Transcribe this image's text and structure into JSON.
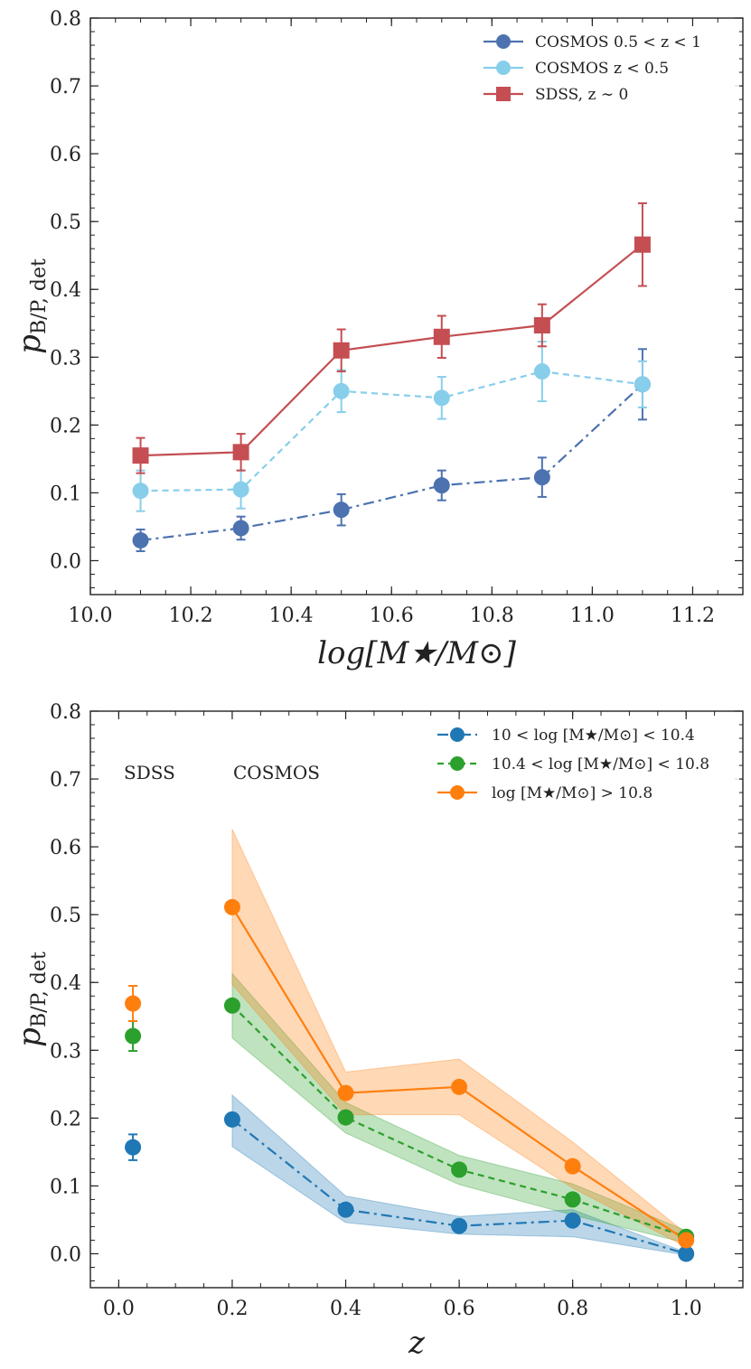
{
  "chart_data": [
    {
      "type": "line",
      "xlabel": "log[M★/M⊙]",
      "ylabel_main": "p",
      "ylabel_sub": "B/P, det",
      "xlim": [
        10.0,
        11.3
      ],
      "ylim": [
        -0.05,
        0.8
      ],
      "xticks": [
        10.0,
        10.2,
        10.4,
        10.6,
        10.8,
        11.0,
        11.2
      ],
      "xtick_labels": [
        "10.0",
        "10.2",
        "10.4",
        "10.6",
        "10.8",
        "11.0",
        "11.2"
      ],
      "yticks": [
        0.0,
        0.1,
        0.2,
        0.3,
        0.4,
        0.5,
        0.6,
        0.7,
        0.8
      ],
      "ytick_labels": [
        "0.0",
        "0.1",
        "0.2",
        "0.3",
        "0.4",
        "0.5",
        "0.6",
        "0.7",
        "0.8"
      ],
      "legend_position": "top-right",
      "series": [
        {
          "name": "COSMOS 0.5 < z < 1",
          "color": "#4c72b0",
          "dash": "12,5,3,5",
          "marker": "circle",
          "x": [
            10.1,
            10.3,
            10.5,
            10.7,
            10.9,
            11.1
          ],
          "y": [
            0.03,
            0.048,
            0.075,
            0.111,
            0.123,
            0.26
          ],
          "err": [
            0.016,
            0.017,
            0.023,
            0.022,
            0.029,
            0.052
          ]
        },
        {
          "name": "COSMOS z < 0.5",
          "color": "#87ceeb",
          "dash": "7,5",
          "marker": "circle",
          "x": [
            10.1,
            10.3,
            10.5,
            10.7,
            10.9,
            11.1
          ],
          "y": [
            0.103,
            0.105,
            0.25,
            0.24,
            0.279,
            0.26
          ],
          "err": [
            0.03,
            0.028,
            0.031,
            0.031,
            0.044,
            0.034
          ]
        },
        {
          "name": "SDSS, z ∼ 0",
          "color": "#c44e52",
          "dash": "",
          "marker": "square",
          "x": [
            10.1,
            10.3,
            10.5,
            10.7,
            10.9,
            11.1
          ],
          "y": [
            0.155,
            0.16,
            0.31,
            0.33,
            0.347,
            0.466
          ],
          "err": [
            0.026,
            0.027,
            0.031,
            0.031,
            0.031,
            0.061
          ]
        }
      ]
    },
    {
      "type": "line",
      "xlabel": "z",
      "ylabel_main": "p",
      "ylabel_sub": "B/P, det",
      "xlim": [
        -0.05,
        1.1
      ],
      "ylim": [
        -0.05,
        0.8
      ],
      "xticks": [
        0.0,
        0.2,
        0.4,
        0.6,
        0.8,
        1.0
      ],
      "xtick_labels": [
        "0.0",
        "0.2",
        "0.4",
        "0.6",
        "0.8",
        "1.0"
      ],
      "yticks": [
        0.0,
        0.1,
        0.2,
        0.3,
        0.4,
        0.5,
        0.6,
        0.7,
        0.8
      ],
      "ytick_labels": [
        "0.0",
        "0.1",
        "0.2",
        "0.3",
        "0.4",
        "0.5",
        "0.6",
        "0.7",
        "0.8"
      ],
      "legend_position": "top-right",
      "annotations": [
        "SDSS",
        "COSMOS"
      ],
      "series": [
        {
          "name": "10 < log [M★/M⊙] < 10.4",
          "color": "#1f77b4",
          "dash": "12,5,3,5",
          "x": [
            0.2,
            0.4,
            0.6,
            0.8,
            1.0
          ],
          "y": [
            0.198,
            0.065,
            0.041,
            0.049,
            0.0
          ],
          "lower": [
            0.158,
            0.046,
            0.029,
            0.025,
            -0.002
          ],
          "upper": [
            0.234,
            0.085,
            0.055,
            0.065,
            0.002
          ],
          "sdss": {
            "x": 0.025,
            "y": 0.157,
            "err": 0.019
          }
        },
        {
          "name": "10.4 < log [M★/M⊙] < 10.8",
          "color": "#2ca02c",
          "dash": "7,5",
          "x": [
            0.2,
            0.4,
            0.6,
            0.8,
            1.0
          ],
          "y": [
            0.366,
            0.201,
            0.124,
            0.08,
            0.025
          ],
          "lower": [
            0.318,
            0.178,
            0.102,
            0.057,
            0.016
          ],
          "upper": [
            0.413,
            0.223,
            0.145,
            0.103,
            0.034
          ],
          "sdss": {
            "x": 0.025,
            "y": 0.321,
            "err": 0.022
          }
        },
        {
          "name": "log [M★/M⊙] > 10.8",
          "color": "#ff7f0e",
          "dash": "",
          "x": [
            0.2,
            0.4,
            0.6,
            0.8,
            1.0
          ],
          "y": [
            0.511,
            0.237,
            0.246,
            0.129,
            0.02
          ],
          "lower": [
            0.397,
            0.205,
            0.205,
            0.097,
            0.01
          ],
          "upper": [
            0.626,
            0.268,
            0.287,
            0.165,
            0.03
          ],
          "sdss": {
            "x": 0.025,
            "y": 0.369,
            "err": 0.026
          }
        }
      ]
    }
  ]
}
